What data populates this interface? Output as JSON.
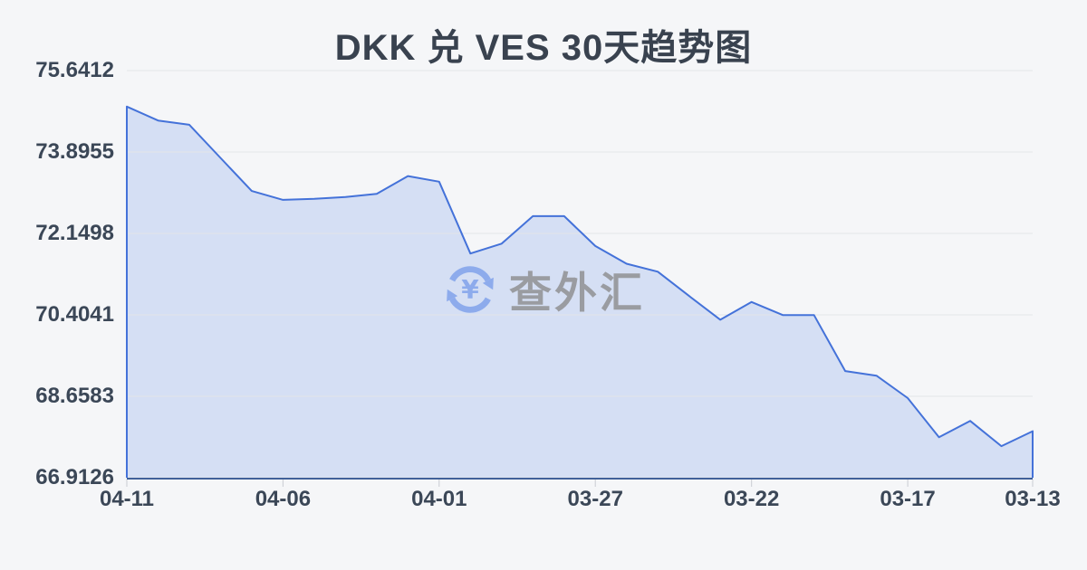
{
  "title": "DKK 兑 VES 30天趋势图",
  "watermark": {
    "text": "查外汇",
    "symbol": "¥"
  },
  "chart_data": {
    "type": "area",
    "title": "DKK 兑 VES 30天趋势图",
    "x": [
      "04-11",
      "04-10",
      "04-09",
      "04-08",
      "04-07",
      "04-06",
      "04-05",
      "04-04",
      "04-03",
      "04-02",
      "04-01",
      "03-31",
      "03-30",
      "03-29",
      "03-28",
      "03-27",
      "03-26",
      "03-25",
      "03-24",
      "03-23",
      "03-22",
      "03-21",
      "03-20",
      "03-19",
      "03-18",
      "03-17",
      "03-16",
      "03-15",
      "03-14",
      "03-13"
    ],
    "values": [
      74.87,
      74.57,
      74.48,
      73.77,
      73.06,
      72.87,
      72.89,
      72.93,
      73.0,
      73.38,
      73.26,
      71.72,
      71.93,
      72.52,
      72.52,
      71.88,
      71.5,
      71.33,
      70.81,
      70.3,
      70.68,
      70.4,
      70.4,
      69.2,
      69.1,
      68.62,
      67.78,
      68.13,
      67.59,
      67.91
    ],
    "ylim": [
      66.9126,
      75.6412
    ],
    "y_ticks": [
      75.6412,
      73.8955,
      72.1498,
      70.4041,
      68.6583,
      66.9126
    ],
    "x_tick_labels": [
      "04-11",
      "04-06",
      "04-01",
      "03-27",
      "03-22",
      "03-17",
      "03-13"
    ],
    "x_tick_indices": [
      0,
      5,
      10,
      15,
      20,
      25,
      29
    ],
    "grid": true,
    "legend": "none",
    "colors": {
      "background": "#f5f6f8",
      "line": "#4472d9",
      "fill": "#d5dff4",
      "axis": "#40619a",
      "grid": "#e4e6e9",
      "tick": "#c9ccd2",
      "label": "#3b4757",
      "title": "#39424f",
      "watermark_text": "#97999d",
      "watermark_icon": "#8aa9ec"
    }
  }
}
